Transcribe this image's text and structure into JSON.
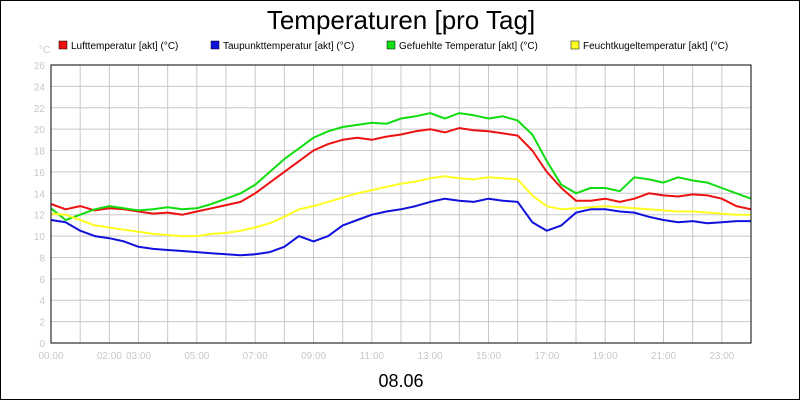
{
  "chart_data": {
    "type": "line",
    "title": "Temperaturen [pro Tag]",
    "y_unit": "°C",
    "date_label": "08.06",
    "ylim": [
      0,
      26
    ],
    "y_ticks": [
      0,
      2,
      4,
      6,
      8,
      10,
      12,
      14,
      16,
      18,
      20,
      22,
      24,
      26
    ],
    "xlim": [
      0,
      24
    ],
    "x_ticks": [
      {
        "h": 0,
        "label": "00:00"
      },
      {
        "h": 2,
        "label": "02:00"
      },
      {
        "h": 3,
        "label": "03:00"
      },
      {
        "h": 5,
        "label": "05:00"
      },
      {
        "h": 7,
        "label": "07:00"
      },
      {
        "h": 9,
        "label": "09:00"
      },
      {
        "h": 11,
        "label": "11:00"
      },
      {
        "h": 13,
        "label": "13:00"
      },
      {
        "h": 15,
        "label": "15:00"
      },
      {
        "h": 17,
        "label": "17:00"
      },
      {
        "h": 19,
        "label": "19:00"
      },
      {
        "h": 21,
        "label": "21:00"
      },
      {
        "h": 23,
        "label": "23:00"
      }
    ],
    "grid": true,
    "legend_position": "top",
    "series": [
      {
        "name": "Lufttemperatur [akt] (°C)",
        "color": "#ee1111",
        "x": [
          0,
          0.5,
          1,
          1.5,
          2,
          2.5,
          3,
          3.5,
          4,
          4.5,
          5,
          5.5,
          6,
          6.5,
          7,
          7.5,
          8,
          8.5,
          9,
          9.5,
          10,
          10.5,
          11,
          11.5,
          12,
          12.5,
          13,
          13.5,
          14,
          14.5,
          15,
          15.5,
          16,
          16.5,
          17,
          17.5,
          18,
          18.5,
          19,
          19.5,
          20,
          20.5,
          21,
          21.5,
          22,
          22.5,
          23,
          23.5,
          24
        ],
        "values": [
          13.0,
          12.5,
          12.8,
          12.4,
          12.6,
          12.5,
          12.3,
          12.1,
          12.2,
          12.0,
          12.3,
          12.6,
          12.9,
          13.2,
          14.0,
          15.0,
          16.0,
          17.0,
          18.0,
          18.6,
          19.0,
          19.2,
          19.0,
          19.3,
          19.5,
          19.8,
          20.0,
          19.7,
          20.1,
          19.9,
          19.8,
          19.6,
          19.4,
          18.0,
          16.0,
          14.5,
          13.3,
          13.3,
          13.5,
          13.2,
          13.5,
          14.0,
          13.8,
          13.7,
          13.9,
          13.8,
          13.5,
          12.8,
          12.5
        ]
      },
      {
        "name": "Taupunkttemperatur [akt] (°C)",
        "color": "#1111dd",
        "x": [
          0,
          0.5,
          1,
          1.5,
          2,
          2.5,
          3,
          3.5,
          4,
          4.5,
          5,
          5.5,
          6,
          6.5,
          7,
          7.5,
          8,
          8.5,
          9,
          9.5,
          10,
          10.5,
          11,
          11.5,
          12,
          12.5,
          13,
          13.5,
          14,
          14.5,
          15,
          15.5,
          16,
          16.5,
          17,
          17.5,
          18,
          18.5,
          19,
          19.5,
          20,
          20.5,
          21,
          21.5,
          22,
          22.5,
          23,
          23.5,
          24
        ],
        "values": [
          11.5,
          11.3,
          10.5,
          10.0,
          9.8,
          9.5,
          9.0,
          8.8,
          8.7,
          8.6,
          8.5,
          8.4,
          8.3,
          8.2,
          8.3,
          8.5,
          9.0,
          10.0,
          9.5,
          10.0,
          11.0,
          11.5,
          12.0,
          12.3,
          12.5,
          12.8,
          13.2,
          13.5,
          13.3,
          13.2,
          13.5,
          13.3,
          13.2,
          11.3,
          10.5,
          11.0,
          12.2,
          12.5,
          12.5,
          12.3,
          12.2,
          11.8,
          11.5,
          11.3,
          11.4,
          11.2,
          11.3,
          11.4,
          11.4
        ]
      },
      {
        "name": "Gefuehlte Temperatur [akt] (°C)",
        "color": "#11dd11",
        "x": [
          0,
          0.5,
          1,
          1.5,
          2,
          2.5,
          3,
          3.5,
          4,
          4.5,
          5,
          5.5,
          6,
          6.5,
          7,
          7.5,
          8,
          8.5,
          9,
          9.5,
          10,
          10.5,
          11,
          11.5,
          12,
          12.5,
          13,
          13.5,
          14,
          14.5,
          15,
          15.5,
          16,
          16.5,
          17,
          17.5,
          18,
          18.5,
          19,
          19.5,
          20,
          20.5,
          21,
          21.5,
          22,
          22.5,
          23,
          23.5,
          24
        ],
        "values": [
          12.6,
          11.5,
          12.0,
          12.5,
          12.8,
          12.6,
          12.4,
          12.5,
          12.7,
          12.5,
          12.6,
          13.0,
          13.5,
          14.0,
          14.8,
          16.0,
          17.2,
          18.2,
          19.2,
          19.8,
          20.2,
          20.4,
          20.6,
          20.5,
          21.0,
          21.2,
          21.5,
          21.0,
          21.5,
          21.3,
          21.0,
          21.2,
          20.8,
          19.5,
          17.0,
          14.8,
          14.0,
          14.5,
          14.5,
          14.2,
          15.5,
          15.3,
          15.0,
          15.5,
          15.2,
          15.0,
          14.5,
          14.0,
          13.5
        ]
      },
      {
        "name": "Feuchtkugeltemperatur [akt] (°C)",
        "color": "#ffff22",
        "x": [
          0,
          0.5,
          1,
          1.5,
          2,
          2.5,
          3,
          3.5,
          4,
          4.5,
          5,
          5.5,
          6,
          6.5,
          7,
          7.5,
          8,
          8.5,
          9,
          9.5,
          10,
          10.5,
          11,
          11.5,
          12,
          12.5,
          13,
          13.5,
          14,
          14.5,
          15,
          15.5,
          16,
          16.5,
          17,
          17.5,
          18,
          18.5,
          19,
          19.5,
          20,
          20.5,
          21,
          21.5,
          22,
          22.5,
          23,
          23.5,
          24
        ],
        "values": [
          12.1,
          12.0,
          11.5,
          11.0,
          10.8,
          10.6,
          10.4,
          10.2,
          10.1,
          10.0,
          10.0,
          10.2,
          10.3,
          10.5,
          10.8,
          11.2,
          11.8,
          12.5,
          12.8,
          13.2,
          13.6,
          14.0,
          14.3,
          14.6,
          14.9,
          15.1,
          15.4,
          15.6,
          15.4,
          15.3,
          15.5,
          15.4,
          15.3,
          13.8,
          12.8,
          12.5,
          12.6,
          12.7,
          12.8,
          12.7,
          12.6,
          12.5,
          12.4,
          12.3,
          12.3,
          12.2,
          12.1,
          12.0,
          12.0
        ]
      }
    ]
  }
}
